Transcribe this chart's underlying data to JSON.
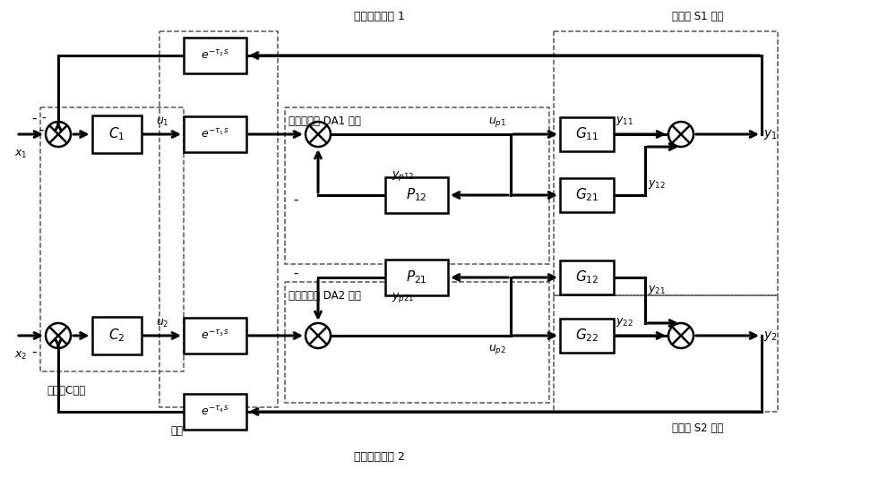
{
  "fig_w": 10.0,
  "fig_h": 5.43,
  "dpi": 100,
  "node_C": "控制器C节点",
  "node_net": "网络",
  "node_DA1": "解耦执行器 DA1 节点",
  "node_DA2": "解耦执行器 DA2 节点",
  "node_S1": "传感器 S1 节点",
  "node_S2": "传感器 S2 节点",
  "loop1": "闭环控制回路 1",
  "loop2": "闭环控制回路 2",
  "tau1": "e^{-\\tau_1 s}",
  "tau2": "e^{-\\tau_2 s}",
  "tau3": "e^{-\\tau_3 s}",
  "tau4": "e^{-\\tau_4 s}",
  "C1": "C_1",
  "C2": "C_2",
  "G11": "G_{11}",
  "G12": "G_{12}",
  "G21": "G_{21}",
  "G22": "G_{22}",
  "P12": "P_{12}",
  "P21": "P_{21}"
}
